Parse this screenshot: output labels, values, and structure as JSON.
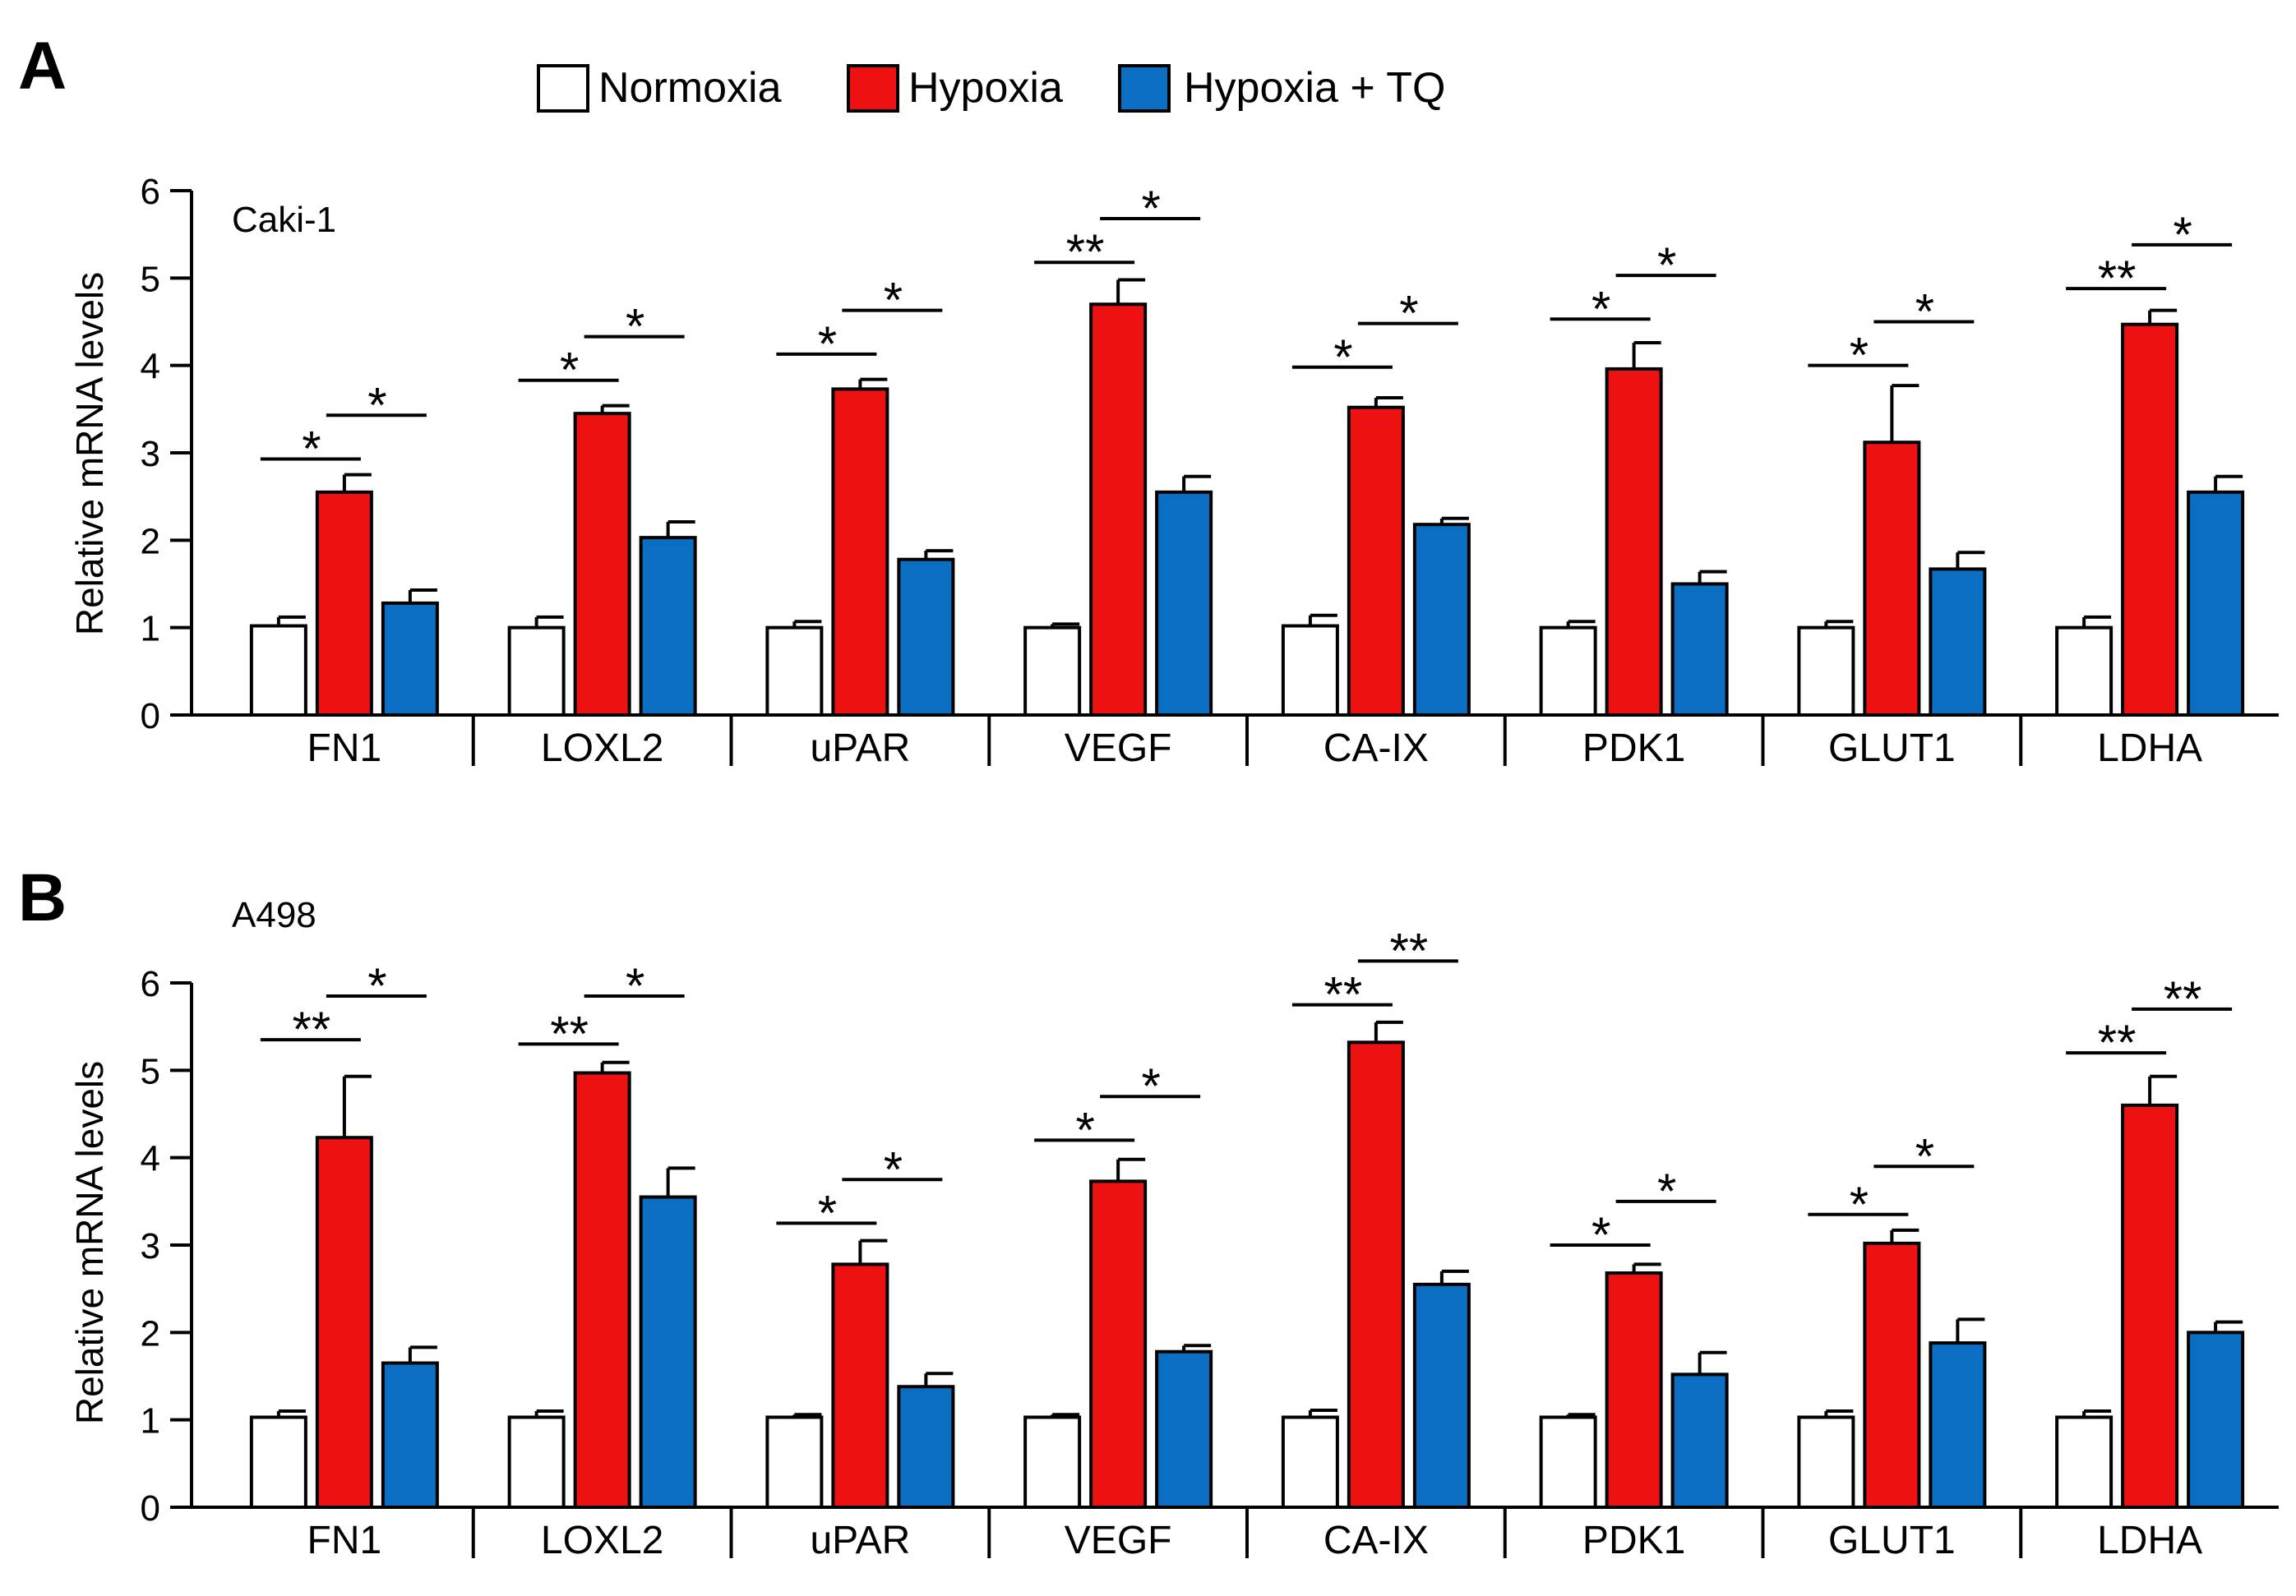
{
  "legend": {
    "items": [
      {
        "label": "Normoxia",
        "color": "#ffffff"
      },
      {
        "label": "Hypoxia",
        "color": "#ee1111"
      },
      {
        "label": "Hypoxia + TQ",
        "color": "#0a6fc2"
      }
    ]
  },
  "colors": {
    "normoxia": "#ffffff",
    "hypoxia": "#ee1111",
    "hypoxia_tq": "#0a6fc2",
    "axis": "#000000"
  },
  "chart_data": [
    {
      "type": "bar",
      "panel": "A",
      "cell_line": "Caki-1",
      "ylabel": "Relative mRNA levels",
      "ylim": [
        0,
        6
      ],
      "yticks": [
        "0",
        "1",
        "2",
        "3",
        "4",
        "5",
        "6"
      ],
      "categories": [
        "FN1",
        "LOXL2",
        "uPAR",
        "VEGF",
        "CA-IX",
        "PDK1",
        "GLUT1",
        "LDHA"
      ],
      "series": [
        {
          "name": "Normoxia",
          "values": [
            1.02,
            1.0,
            1.0,
            1.0,
            1.02,
            1.0,
            1.0,
            1.0
          ],
          "errors": [
            0.1,
            0.12,
            0.07,
            0.04,
            0.12,
            0.07,
            0.07,
            0.12
          ]
        },
        {
          "name": "Hypoxia",
          "values": [
            2.55,
            3.45,
            3.73,
            4.7,
            3.52,
            3.96,
            3.12,
            4.47
          ],
          "errors": [
            0.2,
            0.09,
            0.11,
            0.28,
            0.11,
            0.3,
            0.65,
            0.16
          ]
        },
        {
          "name": "Hypoxia + TQ",
          "values": [
            1.28,
            2.03,
            1.78,
            2.55,
            2.18,
            1.5,
            1.67,
            2.55
          ],
          "errors": [
            0.15,
            0.18,
            0.1,
            0.18,
            0.07,
            0.14,
            0.19,
            0.18
          ]
        }
      ],
      "significance": [
        {
          "normoxia_vs_hypoxia": "*",
          "y1": 2.93,
          "hypoxia_vs_tq": "*",
          "y2": 3.43
        },
        {
          "normoxia_vs_hypoxia": "*",
          "y1": 3.83,
          "hypoxia_vs_tq": "*",
          "y2": 4.33
        },
        {
          "normoxia_vs_hypoxia": "*",
          "y1": 4.13,
          "hypoxia_vs_tq": "*",
          "y2": 4.63
        },
        {
          "normoxia_vs_hypoxia": "**",
          "y1": 5.18,
          "hypoxia_vs_tq": "*",
          "y2": 5.68
        },
        {
          "normoxia_vs_hypoxia": "*",
          "y1": 3.98,
          "hypoxia_vs_tq": "*",
          "y2": 4.48
        },
        {
          "normoxia_vs_hypoxia": "*",
          "y1": 4.53,
          "hypoxia_vs_tq": "*",
          "y2": 5.03
        },
        {
          "normoxia_vs_hypoxia": "*",
          "y1": 4.0,
          "hypoxia_vs_tq": "*",
          "y2": 4.5
        },
        {
          "normoxia_vs_hypoxia": "**",
          "y1": 4.88,
          "hypoxia_vs_tq": "*",
          "y2": 5.38
        }
      ]
    },
    {
      "type": "bar",
      "panel": "B",
      "cell_line": "A498",
      "ylabel": "Relative mRNA levels",
      "ylim": [
        0,
        6
      ],
      "yticks": [
        "0",
        "1",
        "2",
        "3",
        "4",
        "5",
        "6"
      ],
      "categories": [
        "FN1",
        "LOXL2",
        "uPAR",
        "VEGF",
        "CA-IX",
        "PDK1",
        "GLUT1",
        "LDHA"
      ],
      "series": [
        {
          "name": "Normoxia",
          "values": [
            1.03,
            1.03,
            1.03,
            1.03,
            1.03,
            1.03,
            1.03,
            1.03
          ],
          "errors": [
            0.07,
            0.07,
            0.03,
            0.03,
            0.08,
            0.03,
            0.07,
            0.07
          ]
        },
        {
          "name": "Hypoxia",
          "values": [
            4.23,
            4.97,
            2.78,
            3.73,
            5.32,
            2.68,
            3.02,
            4.6
          ],
          "errors": [
            0.7,
            0.12,
            0.27,
            0.25,
            0.23,
            0.1,
            0.15,
            0.33
          ]
        },
        {
          "name": "Hypoxia + TQ",
          "values": [
            1.65,
            3.55,
            1.38,
            1.78,
            2.55,
            1.52,
            1.88,
            2.0
          ],
          "errors": [
            0.18,
            0.33,
            0.15,
            0.07,
            0.15,
            0.25,
            0.27,
            0.12
          ]
        }
      ],
      "significance": [
        {
          "normoxia_vs_hypoxia": "**",
          "y1": 5.35,
          "hypoxia_vs_tq": "*",
          "y2": 5.85
        },
        {
          "normoxia_vs_hypoxia": "**",
          "y1": 5.3,
          "hypoxia_vs_tq": "*",
          "y2": 5.85
        },
        {
          "normoxia_vs_hypoxia": "*",
          "y1": 3.25,
          "hypoxia_vs_tq": "*",
          "y2": 3.75
        },
        {
          "normoxia_vs_hypoxia": "*",
          "y1": 4.2,
          "hypoxia_vs_tq": "*",
          "y2": 4.7
        },
        {
          "normoxia_vs_hypoxia": "**",
          "y1": 5.75,
          "hypoxia_vs_tq": "**",
          "y2": 6.25
        },
        {
          "normoxia_vs_hypoxia": "*",
          "y1": 3.0,
          "hypoxia_vs_tq": "*",
          "y2": 3.5
        },
        {
          "normoxia_vs_hypoxia": "*",
          "y1": 3.35,
          "hypoxia_vs_tq": "*",
          "y2": 3.9
        },
        {
          "normoxia_vs_hypoxia": "**",
          "y1": 5.2,
          "hypoxia_vs_tq": "**",
          "y2": 5.7
        }
      ]
    }
  ]
}
